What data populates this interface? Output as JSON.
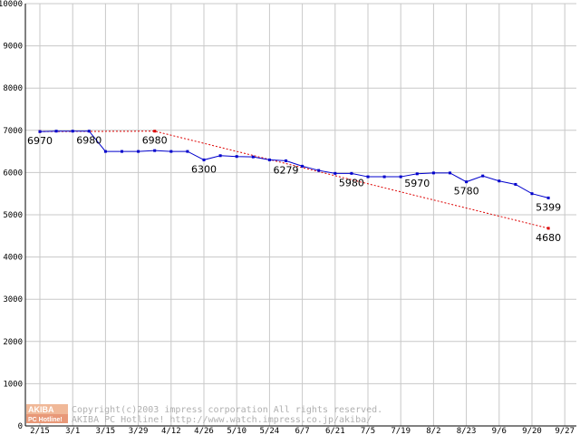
{
  "chart_data": {
    "type": "line",
    "ylim": [
      0,
      10000
    ],
    "yticks": [
      0,
      1000,
      2000,
      3000,
      4000,
      5000,
      6000,
      7000,
      8000,
      9000,
      10000
    ],
    "x_tick_labels": [
      "2/15",
      "3/1",
      "3/15",
      "3/29",
      "4/12",
      "4/26",
      "5/10",
      "5/24",
      "6/7",
      "6/21",
      "7/5",
      "7/19",
      "8/2",
      "8/23",
      "9/6",
      "9/20",
      "9/27"
    ],
    "grid": true,
    "colors": {
      "series": "#0000cc",
      "trend": "#dd0000",
      "grid": "#c8c8c8"
    },
    "series": [
      {
        "x": [
          0,
          0.5,
          1,
          1.5,
          2,
          2.5,
          3,
          3.5,
          4,
          4.5,
          5,
          5.5,
          6,
          6.5,
          7,
          7.5,
          8,
          8.5,
          9,
          9.5,
          10,
          10.5,
          11,
          11.5,
          12,
          12.5,
          13,
          13.5,
          14,
          14.5,
          15,
          15.5
        ],
        "values": [
          6970,
          6980,
          6980,
          6980,
          6500,
          6500,
          6500,
          6520,
          6500,
          6500,
          6300,
          6400,
          6380,
          6370,
          6300,
          6279,
          6150,
          6050,
          5980,
          5980,
          5900,
          5900,
          5900,
          5970,
          5990,
          5990,
          5780,
          5920,
          5800,
          5720,
          5500,
          5399
        ]
      },
      {
        "x": [
          0,
          3.5,
          15.5
        ],
        "values": [
          6970,
          6980,
          4680
        ]
      }
    ],
    "annotations": [
      {
        "x": 0,
        "value": 6970,
        "text": "6970"
      },
      {
        "x": 1.5,
        "value": 6980,
        "text": "6980"
      },
      {
        "x": 3.5,
        "value": 6980,
        "text": "6980"
      },
      {
        "x": 5,
        "value": 6300,
        "text": "6300"
      },
      {
        "x": 7.5,
        "value": 6279,
        "text": "6279"
      },
      {
        "x": 9.5,
        "value": 5980,
        "text": "5980"
      },
      {
        "x": 11.5,
        "value": 5970,
        "text": "5970"
      },
      {
        "x": 13,
        "value": 5780,
        "text": "5780"
      },
      {
        "x": 15.5,
        "value": 5399,
        "text": "5399"
      },
      {
        "x": 15.5,
        "value": 4680,
        "text": "4680"
      }
    ]
  },
  "watermark": {
    "logo_top": "AKIBA",
    "logo_bottom": "PC Hotline!",
    "line1": "Copyright(c)2003 impress corporation All rights reserved.",
    "line2": "AKIBA PC Hotline!  http://www.watch.impress.co.jp/akiba/"
  }
}
